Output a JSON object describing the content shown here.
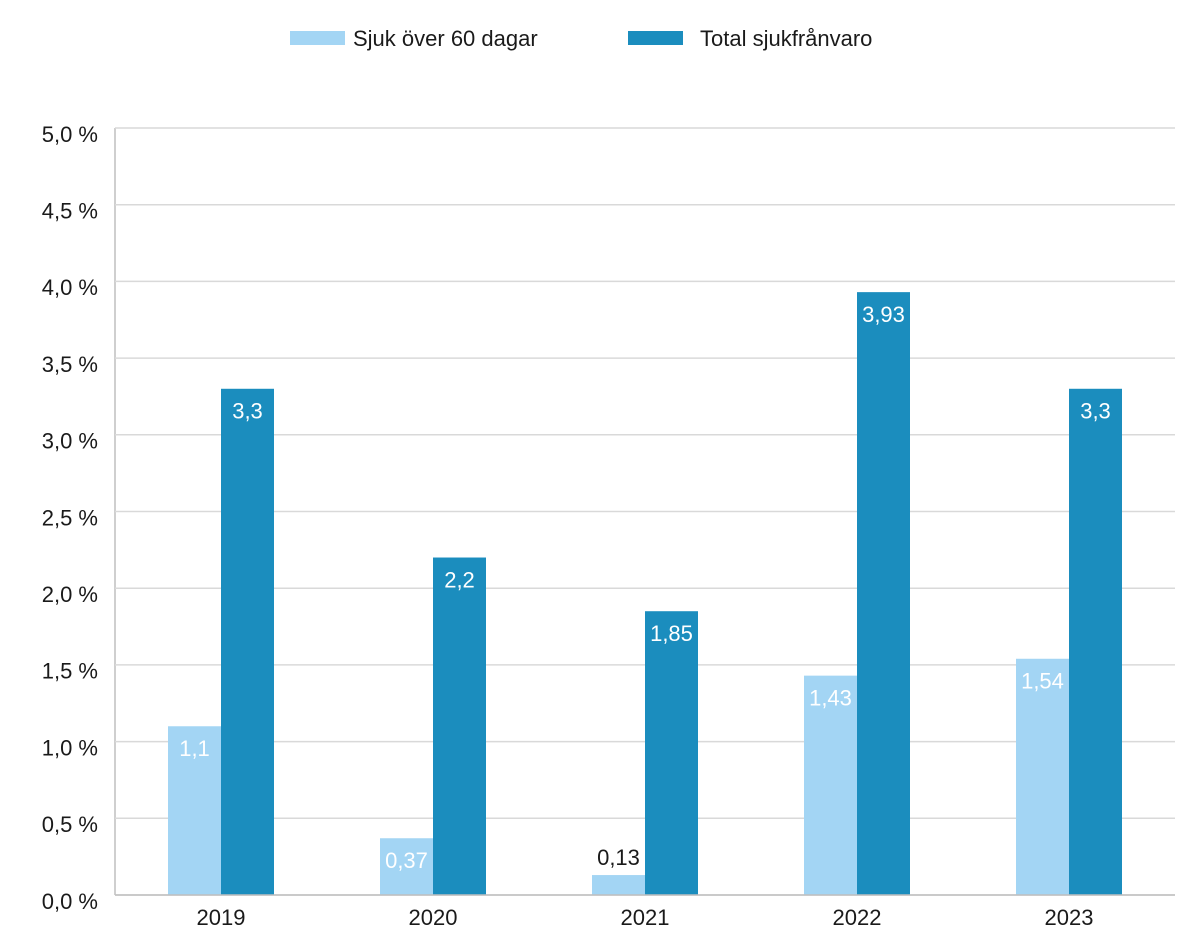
{
  "chart_data": {
    "type": "bar",
    "categories": [
      "2019",
      "2020",
      "2021",
      "2022",
      "2023"
    ],
    "series": [
      {
        "name": "Sjuk över 60 dagar",
        "color": "#a3d5f4",
        "values": [
          1.1,
          0.37,
          0.13,
          1.43,
          1.54
        ],
        "value_labels": [
          "1,1",
          "0,37",
          "0,13",
          "1,43",
          "1,54"
        ]
      },
      {
        "name": "Total sjukfrånvaro",
        "color": "#1b8dbe",
        "values": [
          3.3,
          2.2,
          1.85,
          3.93,
          3.3
        ],
        "value_labels": [
          "3,3",
          "2,2",
          "1,85",
          "3,93",
          "3,3"
        ]
      }
    ],
    "ylim": [
      0,
      5
    ],
    "yticks": [
      {
        "value": 0,
        "label": "0,0 %"
      },
      {
        "value": 0.5,
        "label": "0,5 %"
      },
      {
        "value": 1,
        "label": "1,0 %"
      },
      {
        "value": 1.5,
        "label": "1,5 %"
      },
      {
        "value": 2,
        "label": "2,0 %"
      },
      {
        "value": 2.5,
        "label": "2,5 %"
      },
      {
        "value": 3,
        "label": "3,0 %"
      },
      {
        "value": 3.5,
        "label": "3,5 %"
      },
      {
        "value": 4,
        "label": "4,0 %"
      },
      {
        "value": 4.5,
        "label": "4,5 %"
      },
      {
        "value": 5,
        "label": "5,0 %"
      }
    ],
    "grid": true,
    "legend": "top"
  }
}
